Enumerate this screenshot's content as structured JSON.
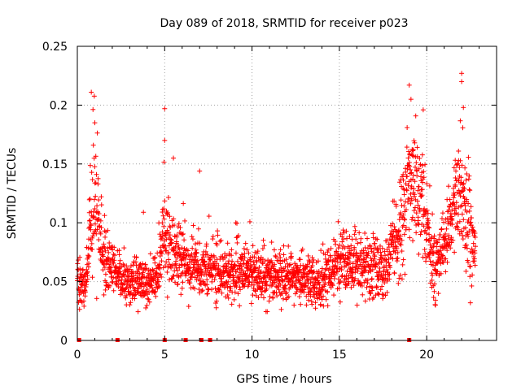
{
  "chart_data": {
    "type": "scatter",
    "title": "Day 089 of 2018, SRMTID for receiver p023",
    "xlabel": "GPS time / hours",
    "ylabel": "SRMTID / TECUs",
    "xlim": [
      0,
      24
    ],
    "ylim": [
      0,
      0.25
    ],
    "xticks": [
      0,
      5,
      10,
      15,
      20
    ],
    "yticks": [
      0,
      0.05,
      0.1,
      0.15,
      0.2,
      0.25
    ],
    "xtick_labels": [
      "0",
      "5",
      "10",
      "15",
      "20"
    ],
    "ytick_labels": [
      "0",
      "0.05",
      "0.1",
      "0.15",
      "0.2",
      "0.25"
    ],
    "grid": true,
    "marker": "+",
    "color": "#ff0000",
    "x_range_of_points": [
      0,
      22.8
    ],
    "baseline_markers_x": [
      0.1,
      2.3,
      5.0,
      6.2,
      7.1,
      7.6,
      19.0
    ],
    "envelope": {
      "description_hours": [
        0,
        0.5,
        0.8,
        1.0,
        1.5,
        2.5,
        4.5,
        5.0,
        5.6,
        7.0,
        10,
        14,
        15,
        17.5,
        18.5,
        19.0,
        19.6,
        20.5,
        21.5,
        22.0,
        22.8
      ],
      "median_tecu": [
        0.05,
        0.045,
        0.11,
        0.12,
        0.07,
        0.05,
        0.05,
        0.09,
        0.07,
        0.06,
        0.055,
        0.05,
        0.065,
        0.06,
        0.09,
        0.14,
        0.12,
        0.06,
        0.11,
        0.13,
        0.07
      ],
      "peaks": [
        {
          "x": 0.8,
          "y": 0.211
        },
        {
          "x": 1.0,
          "y": 0.185
        },
        {
          "x": 5.0,
          "y": 0.197
        },
        {
          "x": 5.0,
          "y": 0.17
        },
        {
          "x": 5.5,
          "y": 0.155
        },
        {
          "x": 7.0,
          "y": 0.144
        },
        {
          "x": 19.0,
          "y": 0.217
        },
        {
          "x": 19.1,
          "y": 0.205
        },
        {
          "x": 19.8,
          "y": 0.196
        },
        {
          "x": 22.0,
          "y": 0.227
        },
        {
          "x": 22.0,
          "y": 0.22
        },
        {
          "x": 22.1,
          "y": 0.198
        },
        {
          "x": 20.5,
          "y": 0.03
        },
        {
          "x": 22.5,
          "y": 0.032
        }
      ]
    }
  }
}
